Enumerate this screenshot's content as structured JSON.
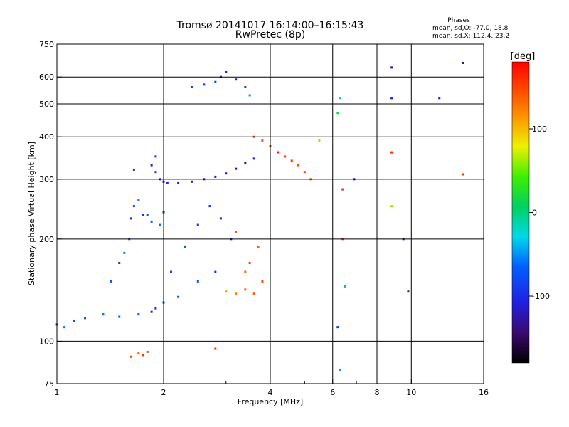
{
  "chart_data": {
    "type": "scatter",
    "title": "Tromsø 20141017 16:14:00–16:15:43",
    "subtitle": "RwPretec (8p)",
    "xlabel": "Frequency [MHz]",
    "ylabel": "Stationary phase Virtual Height [km]",
    "x_scale": "log",
    "y_scale": "log",
    "xlim": [
      1,
      16
    ],
    "ylim": [
      75,
      750
    ],
    "x_ticks": [
      1,
      2,
      4,
      6,
      8,
      10,
      16
    ],
    "x_tick_labels": [
      "1",
      "2",
      "4",
      "6",
      "8",
      "10",
      "16"
    ],
    "x_minor_ticks": [
      3,
      5,
      7,
      9
    ],
    "y_ticks": [
      75,
      100,
      200,
      300,
      400,
      500,
      600,
      750
    ],
    "y_tick_labels": [
      "75",
      "100",
      "200",
      "300",
      "400",
      "500",
      "600",
      "750"
    ],
    "grid_x": [
      2,
      4,
      6,
      8,
      10
    ],
    "grid_y": [
      100,
      200,
      300,
      400,
      500,
      600
    ],
    "grid": true,
    "legend": {
      "title": "Phases",
      "lines": [
        "mean, sd,O: -77.0, 18.8",
        "mean, sd,X: 112.4, 23.2"
      ],
      "placement": "top-right"
    },
    "colorbar": {
      "label": "[deg]",
      "range": [
        -180,
        180
      ],
      "ticks": [
        100,
        0,
        -100
      ],
      "tick_labels": [
        "100",
        "0",
        "-100"
      ],
      "colormap": "rainbow"
    },
    "series": [
      {
        "trace": [
          [
            1.0,
            112,
            -90
          ],
          [
            1.05,
            110,
            -60
          ],
          [
            1.12,
            115,
            -80
          ],
          [
            1.2,
            117,
            -70
          ],
          [
            1.35,
            120,
            -65
          ],
          [
            1.5,
            118,
            -70
          ],
          [
            1.7,
            120,
            -80
          ],
          [
            1.85,
            122,
            -110
          ],
          [
            1.9,
            125,
            -100
          ],
          [
            2.0,
            130,
            -80
          ]
        ]
      },
      {
        "trace": [
          [
            1.42,
            150,
            -70
          ],
          [
            1.5,
            170,
            -95
          ],
          [
            1.55,
            182,
            -55
          ],
          [
            1.6,
            200,
            -65
          ],
          [
            1.62,
            230,
            -95
          ],
          [
            1.65,
            250,
            -80
          ],
          [
            1.7,
            260,
            -60
          ],
          [
            1.65,
            320,
            -95
          ],
          [
            1.75,
            235,
            -90
          ],
          [
            1.8,
            235,
            -80
          ],
          [
            1.85,
            225,
            -70
          ],
          [
            1.95,
            220,
            -60
          ],
          [
            2.0,
            240,
            -95
          ]
        ]
      },
      {
        "trace": [
          [
            2.0,
            295,
            -110
          ],
          [
            2.05,
            292,
            -100
          ],
          [
            2.2,
            292,
            -110
          ],
          [
            2.4,
            295,
            -120
          ],
          [
            2.6,
            300,
            -120
          ],
          [
            2.8,
            305,
            -110
          ],
          [
            3.0,
            312,
            -110
          ],
          [
            3.2,
            322,
            -120
          ],
          [
            3.4,
            335,
            -115
          ],
          [
            3.6,
            345,
            -105
          ]
        ]
      },
      {
        "trace": [
          [
            1.85,
            330,
            -110
          ],
          [
            1.9,
            315,
            -105
          ],
          [
            1.95,
            300,
            -110
          ],
          [
            1.9,
            350,
            -100
          ]
        ]
      },
      {
        "trace": [
          [
            2.4,
            560,
            -90
          ],
          [
            2.6,
            570,
            -95
          ],
          [
            2.8,
            580,
            -90
          ],
          [
            2.9,
            600,
            -110
          ],
          [
            3.0,
            620,
            -110
          ],
          [
            3.2,
            590,
            -100
          ],
          [
            3.4,
            560,
            -90
          ],
          [
            3.5,
            530,
            -50
          ]
        ]
      },
      {
        "trace": [
          [
            3.6,
            400,
            150
          ],
          [
            3.8,
            390,
            140
          ],
          [
            4.0,
            375,
            160
          ],
          [
            4.2,
            360,
            165
          ],
          [
            4.4,
            350,
            150
          ],
          [
            4.6,
            340,
            155
          ],
          [
            4.8,
            330,
            145
          ],
          [
            5.0,
            315,
            150
          ],
          [
            5.2,
            300,
            140
          ],
          [
            5.5,
            390,
            100
          ]
        ]
      },
      {
        "trace": [
          [
            3.0,
            140,
            110
          ],
          [
            3.2,
            138,
            120
          ],
          [
            3.4,
            142,
            130
          ],
          [
            3.6,
            138,
            140
          ],
          [
            3.8,
            150,
            145
          ],
          [
            3.5,
            170,
            150
          ],
          [
            3.7,
            190,
            140
          ],
          [
            3.4,
            160,
            135
          ],
          [
            3.2,
            210,
            140
          ]
        ]
      },
      {
        "trace": [
          [
            2.1,
            160,
            -90
          ],
          [
            2.3,
            190,
            -80
          ],
          [
            2.5,
            220,
            -100
          ],
          [
            2.7,
            250,
            -85
          ],
          [
            2.9,
            230,
            -110
          ],
          [
            3.1,
            200,
            -100
          ],
          [
            2.5,
            150,
            -75
          ],
          [
            2.2,
            135,
            -70
          ],
          [
            2.8,
            160,
            -95
          ]
        ]
      },
      {
        "trace": [
          [
            6.2,
            470,
            20
          ],
          [
            6.3,
            520,
            -20
          ],
          [
            6.4,
            280,
            160
          ],
          [
            6.4,
            200,
            150
          ],
          [
            6.2,
            110,
            -100
          ],
          [
            6.3,
            82,
            -50
          ],
          [
            6.5,
            145,
            -40
          ],
          [
            6.9,
            300,
            -110
          ],
          [
            8.8,
            640,
            -120
          ],
          [
            8.8,
            520,
            -100
          ],
          [
            8.8,
            360,
            160
          ],
          [
            8.8,
            250,
            60
          ],
          [
            9.5,
            200,
            -120
          ],
          [
            9.8,
            140,
            -120
          ],
          [
            12.0,
            520,
            -110
          ],
          [
            14.0,
            660,
            -130
          ],
          [
            14.0,
            310,
            160
          ]
        ]
      },
      {
        "trace": [
          [
            1.62,
            90,
            150
          ],
          [
            1.7,
            92,
            140
          ],
          [
            1.75,
            91,
            160
          ],
          [
            1.8,
            93,
            150
          ],
          [
            2.8,
            95,
            160
          ]
        ]
      }
    ]
  }
}
